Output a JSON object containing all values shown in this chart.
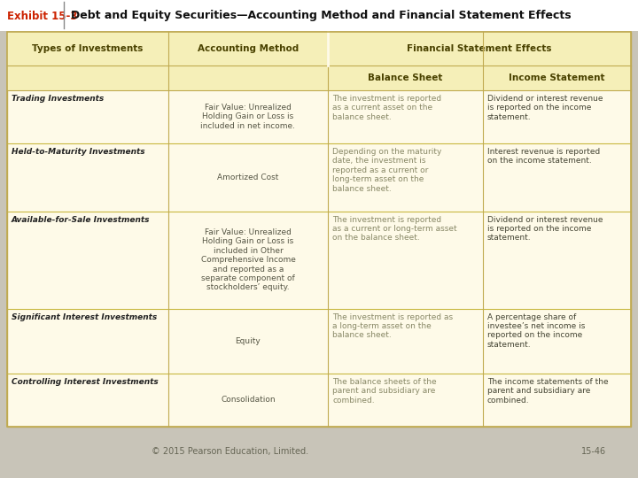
{
  "title_exhibit": "Exhibit 15-3",
  "title_main": "Debt and Equity Securities—Accounting Method and Financial Statement Effects",
  "bg_color": "#c8c4b8",
  "table_bg": "#fefae8",
  "header_bg": "#f5efb8",
  "header_text_color": "#4a4200",
  "border_color": "#c0aa50",
  "title_bar_bg": "#ffffff",
  "rows": [
    {
      "col0": "Trading Investments",
      "col1": "Fair Value: Unrealized\nHolding Gain or Loss is\nincluded in net income.",
      "col2": "The investment is reported\nas a current asset on the\nbalance sheet.",
      "col3": "Dividend or interest revenue\nis reported on the income\nstatement."
    },
    {
      "col0": "Held-to-Maturity Investments",
      "col1": "Amortized Cost",
      "col2": "Depending on the maturity\ndate, the investment is\nreported as a current or\nlong-term asset on the\nbalance sheet.",
      "col3": "Interest revenue is reported\non the income statement."
    },
    {
      "col0": "Available-for-Sale Investments",
      "col1": "Fair Value: Unrealized\nHolding Gain or Loss is\nincluded in Other\nComprehensive Income\nand reported as a\nseparate component of\nstockholders’ equity.",
      "col2": "The investment is reported\nas a current or long-term asset\non the balance sheet.",
      "col3": "Dividend or interest revenue\nis reported on the income\nstatement."
    },
    {
      "col0": "Significant Interest Investments",
      "col1": "Equity",
      "col2": "The investment is reported as\na long-term asset on the\nbalance sheet.",
      "col3": "A percentage share of\ninvestee’s net income is\nreported on the income\nstatement."
    },
    {
      "col0": "Controlling Interest Investments",
      "col1": "Consolidation",
      "col2": "The balance sheets of the\nparent and subsidiary are\ncombined.",
      "col3": "The income statements of the\nparent and subsidiary are\ncombined."
    }
  ],
  "footer_left": "© 2015 Pearson Education, Limited.",
  "footer_right": "15-46",
  "exhibit_color": "#cc2200",
  "col0_bold_color": "#222222",
  "col1_color": "#555544",
  "col2_color": "#888866",
  "col3_color": "#444433",
  "divider_color": "#c8b840"
}
